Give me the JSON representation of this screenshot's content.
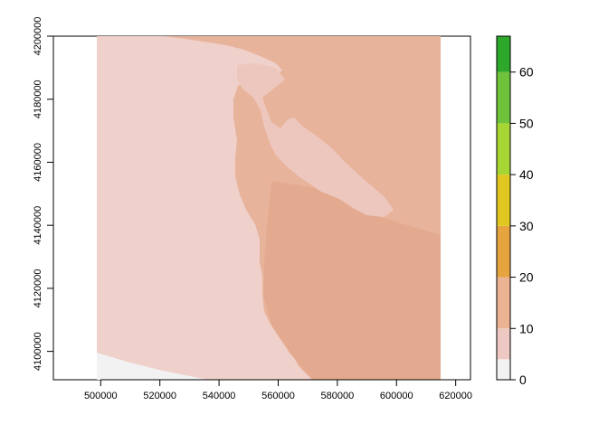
{
  "map": {
    "x_ticks": [
      "500000",
      "520000",
      "540000",
      "560000",
      "580000",
      "600000",
      "620000"
    ],
    "y_ticks": [
      "4100000",
      "4120000",
      "4140000",
      "4160000",
      "4180000",
      "4200000"
    ],
    "legend": {
      "ticks": [
        "0",
        "10",
        "20",
        "30",
        "40",
        "50",
        "60"
      ],
      "colors": [
        "#F2F2F2",
        "#EEC9C3",
        "#EBB293",
        "#E6A43F",
        "#E0C820",
        "#A6D633",
        "#6FC33A",
        "#2EA82A",
        "#059010"
      ]
    },
    "colors": {
      "ocean": "#EFD0CA",
      "land": "#E8B39B",
      "land_dark": "#E4AA8F",
      "bay": "#EDC7BE",
      "nodata": "#F2F2F2",
      "background": "#FFFFFF"
    }
  },
  "chart_data": {
    "type": "heatmap",
    "x_axis": {
      "ticks": [
        500000,
        520000,
        540000,
        560000,
        580000,
        600000,
        620000
      ],
      "range": [
        484000,
        625000
      ]
    },
    "y_axis": {
      "ticks": [
        4100000,
        4120000,
        4140000,
        4160000,
        4180000,
        4200000
      ],
      "range": [
        4091000,
        4200000
      ]
    },
    "raster_extent": {
      "xmin": 500000,
      "xmax": 609000,
      "ymin": 4091000,
      "ymax": 4200000
    },
    "color_scale": {
      "min": 0,
      "max": 67,
      "ticks": [
        0,
        10,
        20,
        30,
        40,
        50,
        60
      ]
    },
    "values_present": "approximately 5 (ocean) to 15 (land)",
    "grid": false,
    "legend_placement": "right"
  }
}
